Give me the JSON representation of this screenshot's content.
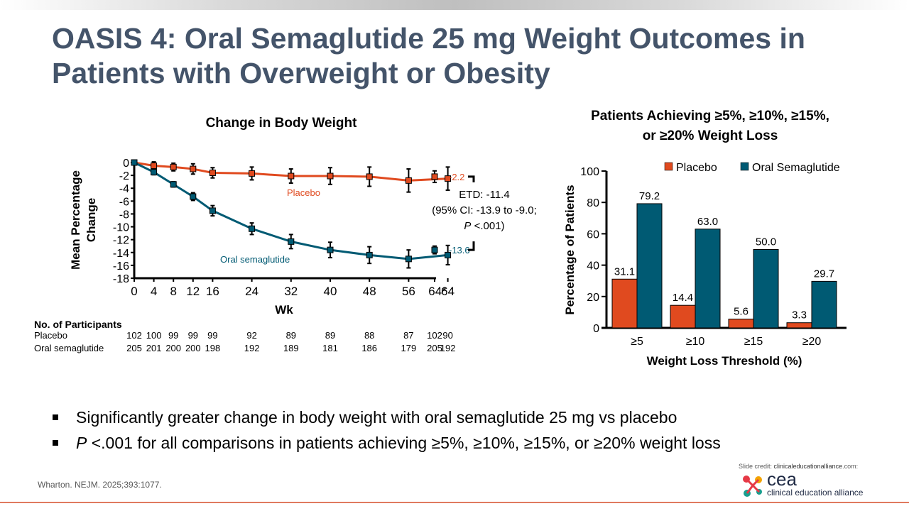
{
  "slide": {
    "title": "OASIS 4: Oral Semaglutide 25 mg Weight Outcomes in Patients with Overweight or Obesity",
    "bullets": [
      {
        "italic_prefix": "",
        "text": "Significantly greater change in body weight with oral semaglutide 25 mg vs placebo"
      },
      {
        "italic_prefix": "P",
        "text": " <.001 for all comparisons in patients achieving ≥5%, ≥10%, ≥15%, or ≥20% weight loss"
      }
    ],
    "citation": "Wharton. NEJM. 2025;393:1077.",
    "credit_prefix": "Slide credit: ",
    "credit_site": "clinicaleducationalliance",
    "credit_suffix": ".com:",
    "logo_short": "cea",
    "logo_full": "clinical education alliance",
    "colors": {
      "placebo": "#e04a1f",
      "semaglutide": "#005a73",
      "title": "#44546a"
    }
  },
  "chart_data": [
    {
      "type": "line",
      "title": "Change in Body Weight",
      "xlabel": "Wk",
      "ylabel": "Mean Percentage Change",
      "ylim": [
        -18,
        0
      ],
      "yticks": [
        0,
        -2,
        -4,
        -6,
        -8,
        -10,
        -12,
        -14,
        -16,
        -18
      ],
      "x": [
        0,
        4,
        8,
        12,
        16,
        24,
        32,
        40,
        48,
        56,
        64
      ],
      "xtick_labels": [
        "0",
        "4",
        "8",
        "12",
        "16",
        "24",
        "32",
        "40",
        "48",
        "56",
        "64",
        "64*"
      ],
      "grid": false,
      "series": [
        {
          "name": "Placebo",
          "color": "#e04a1f",
          "values": [
            0,
            -0.5,
            -0.7,
            -1.0,
            -1.6,
            -1.7,
            -2.1,
            -2.1,
            -2.2,
            -2.8,
            -2.5
          ],
          "errors": [
            0,
            0.6,
            0.6,
            0.8,
            0.8,
            1.0,
            1.1,
            1.3,
            1.5,
            1.8,
            1.8
          ],
          "final_64_star": -2.2,
          "final_error": 0.9,
          "final_label": "-2.2"
        },
        {
          "name": "Oral semaglutide",
          "color": "#005a73",
          "values": [
            0,
            -1.5,
            -3.4,
            -5.3,
            -7.5,
            -10.3,
            -12.3,
            -13.6,
            -14.4,
            -15.0,
            -14.4
          ],
          "errors": [
            0,
            0.4,
            0.4,
            0.6,
            0.8,
            0.9,
            1.1,
            1.2,
            1.3,
            1.4,
            1.5
          ],
          "final_64_star": -13.6,
          "final_error": 0.6,
          "final_label": "-13.6"
        }
      ],
      "annotations": {
        "placebo_label": "Placebo",
        "sema_label": "Oral semaglutide",
        "etd_line1": "ETD: -11.4",
        "etd_line2": "(95% CI: -13.9 to -9.0;",
        "etd_line3_italic": "P",
        "etd_line3_rest": " <.001)"
      },
      "participants": {
        "header": "No. of Participants",
        "rows": [
          {
            "label": "Placebo",
            "values": [
              "102",
              "100",
              "99",
              "99",
              "99",
              "92",
              "89",
              "89",
              "88",
              "87",
              "90",
              "102"
            ]
          },
          {
            "label": "Oral semaglutide",
            "values": [
              "205",
              "201",
              "200",
              "200",
              "198",
              "192",
              "189",
              "181",
              "186",
              "179",
              "192",
              "205"
            ]
          }
        ]
      }
    },
    {
      "type": "bar",
      "title": "Patients Achieving ≥5%, ≥10%, ≥15%, or ≥20% Weight Loss",
      "title_line1": "Patients Achieving ≥5%, ≥10%, ≥15%,",
      "title_line2": "or ≥20% Weight Loss",
      "xlabel": "Weight Loss Threshold (%)",
      "ylabel": "Percentage of Patients",
      "ylim": [
        0,
        100
      ],
      "yticks": [
        0,
        20,
        40,
        60,
        80,
        100
      ],
      "categories": [
        "≥5",
        "≥10",
        "≥15",
        "≥20"
      ],
      "legend_position": "top-right",
      "grid": false,
      "series": [
        {
          "name": "Placebo",
          "color": "#e04a1f",
          "values": [
            31.1,
            14.4,
            5.6,
            3.3
          ],
          "labels": [
            "31.1",
            "14.4",
            "5.6",
            "3.3"
          ]
        },
        {
          "name": "Oral Semaglutide",
          "color": "#005a73",
          "values": [
            79.2,
            63.0,
            50.0,
            29.7
          ],
          "labels": [
            "79.2",
            "63.0",
            "50.0",
            "29.7"
          ]
        }
      ]
    }
  ]
}
